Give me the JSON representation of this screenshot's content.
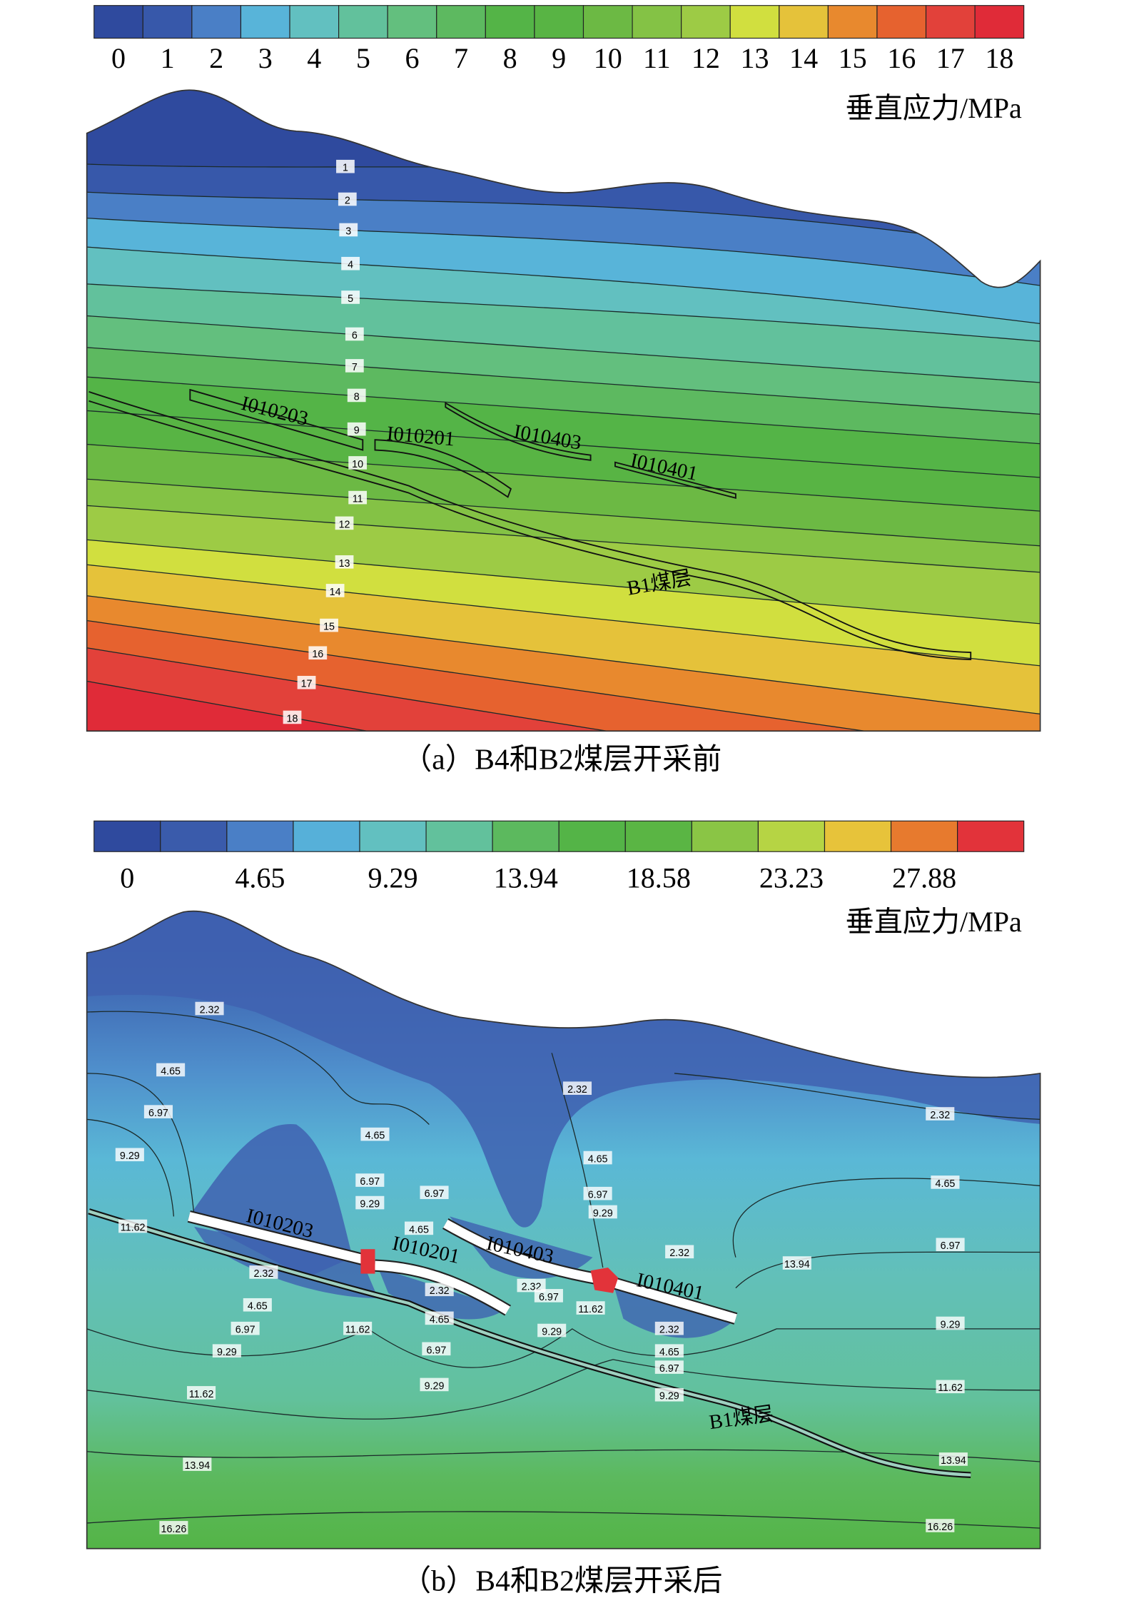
{
  "panel_a": {
    "colorbar": {
      "labels": [
        0,
        1,
        2,
        3,
        4,
        5,
        6,
        7,
        8,
        9,
        10,
        11,
        12,
        13,
        14,
        15,
        16,
        17,
        18
      ],
      "colors": [
        "#2f4a9e",
        "#3758aa",
        "#4a7fc6",
        "#58b4d9",
        "#62c0c0",
        "#62c19c",
        "#63bf7e",
        "#5db960",
        "#54b447",
        "#58b444",
        "#6cb944",
        "#84c245",
        "#9dcb45",
        "#d1df3f",
        "#e5c23a",
        "#e8892e",
        "#e6622f",
        "#e2413a",
        "#e02b38"
      ]
    },
    "unit": "垂直应力/MPa",
    "contour_labels": [
      1,
      2,
      3,
      4,
      5,
      6,
      7,
      8,
      9,
      10,
      11,
      12,
      13,
      14,
      15,
      16,
      17,
      18
    ],
    "seams": [
      "I010203",
      "I010201",
      "I010403",
      "I010401",
      "B1煤层"
    ],
    "caption": "（a）B4和B2煤层开采前"
  },
  "panel_b": {
    "colorbar": {
      "labels": [
        0,
        4.65,
        9.29,
        13.94,
        18.58,
        23.23,
        27.88
      ],
      "colors": [
        "#2f4a9e",
        "#3a5bab",
        "#4a7fc6",
        "#56b0d9",
        "#62c0c0",
        "#62c19c",
        "#5cb95e",
        "#54b447",
        "#5ab544",
        "#8ac545",
        "#b6d444",
        "#e7c33a",
        "#e77a2e",
        "#e2333a"
      ]
    },
    "unit": "垂直应力/MPa",
    "contour_labels": [
      "2.32",
      "4.65",
      "6.97",
      "9.29",
      "11.62",
      "4.65",
      "6.97",
      "9.29",
      "6.97",
      "4.65",
      "2.32",
      "4.65",
      "6.97",
      "9.29",
      "2.32",
      "4.65",
      "6.97",
      "9.29",
      "11.62",
      "13.94",
      "16.26",
      "2.32",
      "4.65",
      "6.97",
      "9.29",
      "11.62",
      "13.94",
      "16.26",
      "2.32",
      "4.65",
      "6.97",
      "9.29",
      "2.32",
      "6.97",
      "9.29",
      "11.62",
      "2.32",
      "4.65",
      "6.97",
      "9.29",
      "2.32",
      "13.94",
      "11.62"
    ],
    "seams": [
      "I010203",
      "I010201",
      "I010403",
      "I010401",
      "B1煤层"
    ],
    "caption": "（b）B4和B2煤层开采后"
  }
}
